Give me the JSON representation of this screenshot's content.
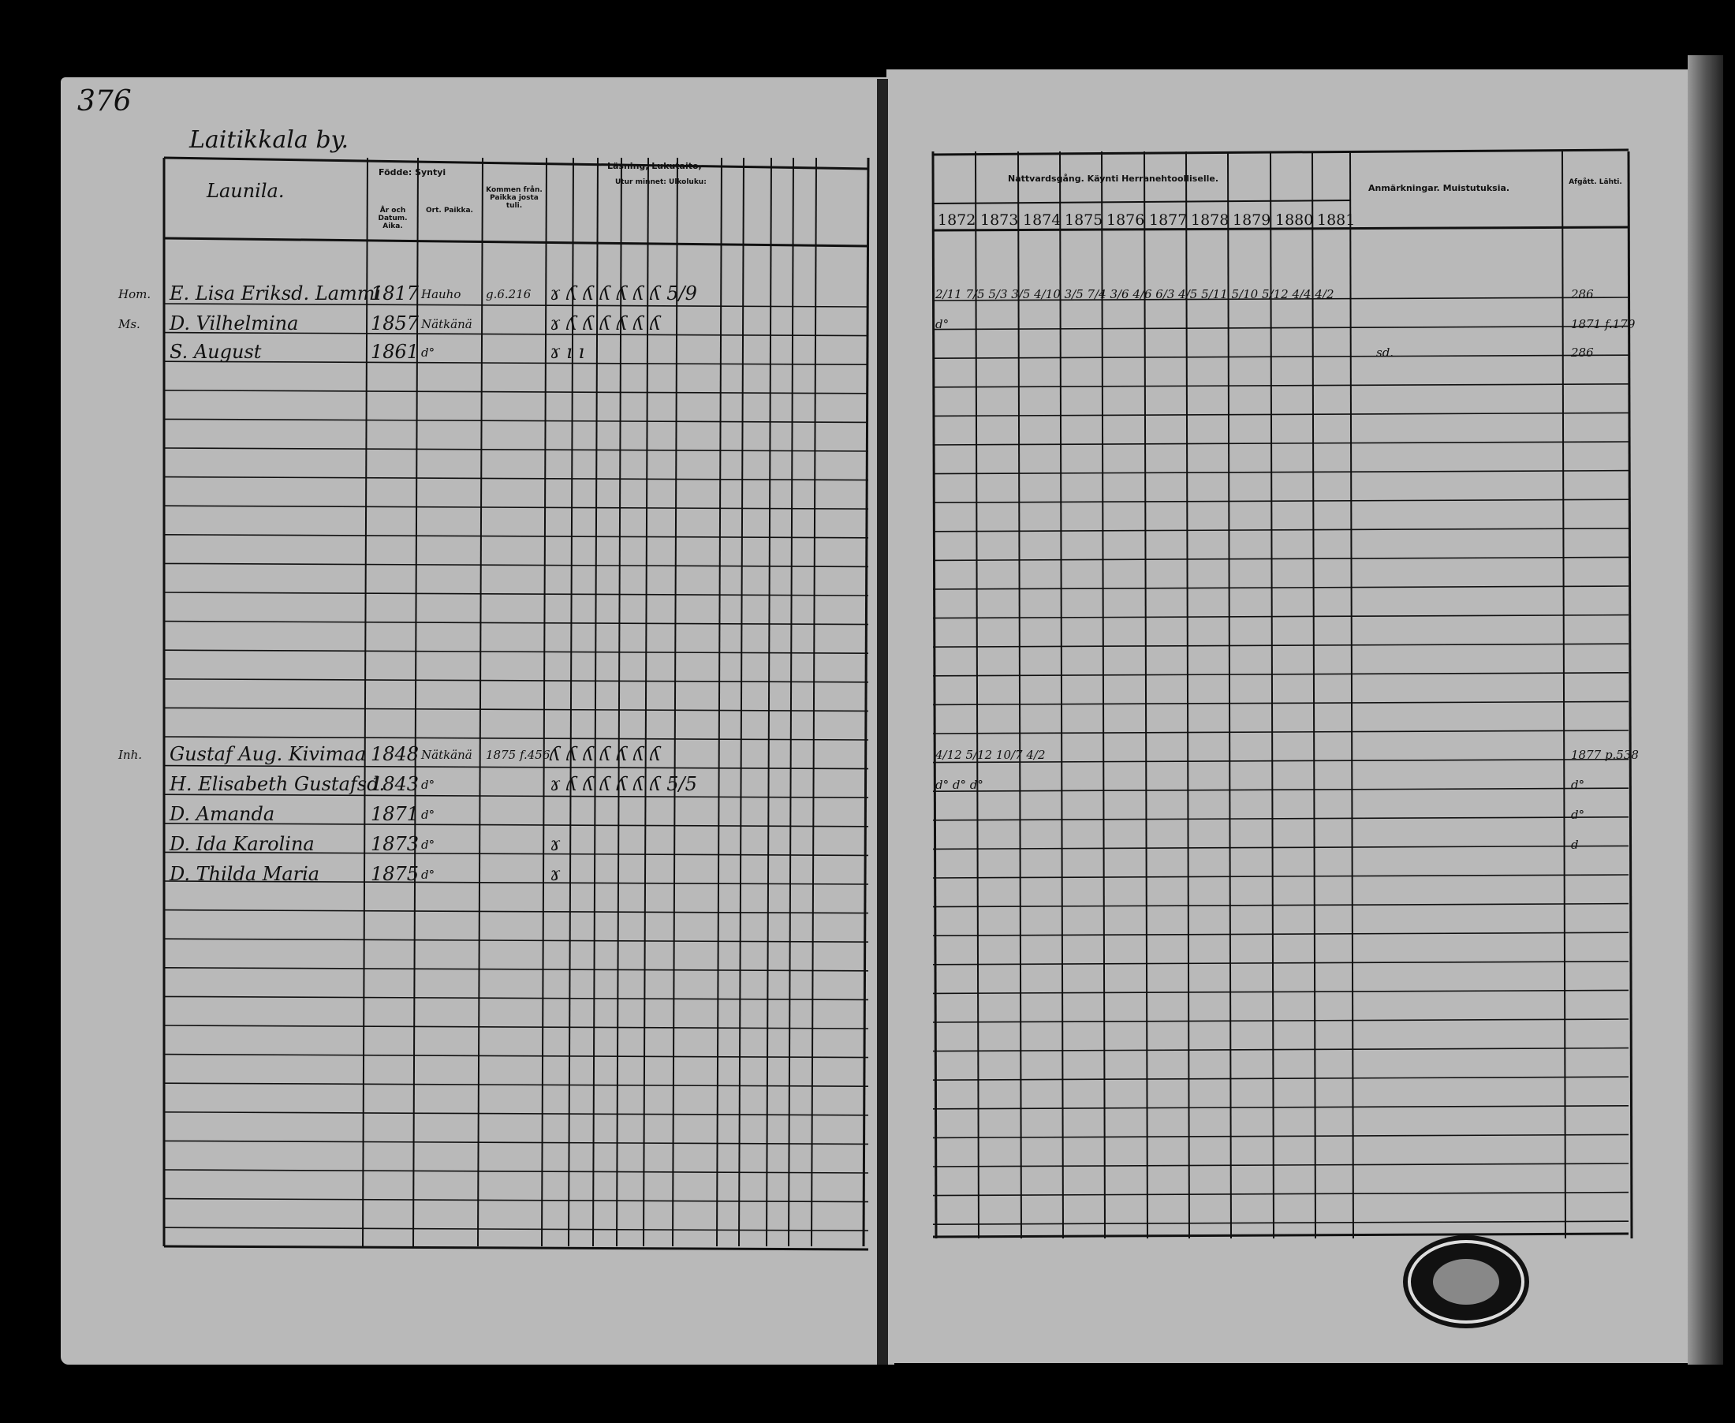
{
  "page_number": "376",
  "village": "Laitikkala by.",
  "left_headers": {
    "name": "Launila.",
    "birth": "Födde: Syntyi",
    "birth_year": "År och Datum. Aika.",
    "birth_place": "Ort. Paikka.",
    "moved_in": "Kommen från. Paikka josta tuli.",
    "reading": "Läsning, Lukutaito,",
    "reading_sub": "Utur minnet: Ulkoluku:"
  },
  "right_headers": {
    "communion": "Nattvardsgång. Käynti Herranehtoolliselle.",
    "years": [
      "1872",
      "1873",
      "1874",
      "1875",
      "1876",
      "1877",
      "1878",
      "1879",
      "1880",
      "1881"
    ],
    "remarks": "Anmärkningar. Muistutuksia.",
    "departed": "Afgått. Lähti."
  },
  "entries": [
    {
      "prefix": "Hom.",
      "name": "E. Lisa Eriksd. Lammi",
      "date": "1817",
      "place": "Hauho",
      "note": "g.6.216",
      "marks": "ɤ  ʎ  ʎ  ʎ  ʎ   ʎ            ʎ   5/9",
      "communion": "2/11  7/5 5/3  3/5 4/10  3/5 7/4  3/6   4/6 6/3  4/5 5/11   5/10   5/12 4/4 4/2",
      "remarks": "",
      "departed": "286"
    },
    {
      "prefix": "Ms.",
      "name": "D. Vilhelmina",
      "date": "1857",
      "place": "Nätkänä",
      "note": "",
      "marks": "ɤ  ʎ  ʎ  ʎ  ʎ   ʎ            ʎ",
      "communion": "d°",
      "remarks": "",
      "departed": "1871 f.179"
    },
    {
      "prefix": "",
      "name": "S. August",
      "date": "1861",
      "place": "d°",
      "note": "",
      "marks": "ɤ  ı  ı",
      "communion": "",
      "remarks": "sd.",
      "departed": "286"
    },
    {
      "prefix": "Inh.",
      "name": "Gustaf Aug. Kivimaa",
      "date": "1848",
      "place": "Nätkänä",
      "note": "1875 f.456",
      "marks": "ʎ  ʎ  ʎ  ʎ  ʎ   ʎ            ʎ",
      "communion": "4/12   5/12 10/7   4/2",
      "remarks": "",
      "departed": "1877 p.538"
    },
    {
      "prefix": "",
      "name": "H. Elisabeth Gustafsd.",
      "date": "1843",
      "place": "d°",
      "note": "",
      "marks": "ɤ  ʎ  ʎ  ʎ  ʎ   ʎ            ʎ  5/5",
      "communion": "d°   d°   d°",
      "remarks": "",
      "departed": "d°"
    },
    {
      "prefix": "",
      "name": "D. Amanda",
      "date": "1871",
      "place": "d°",
      "note": "",
      "marks": "",
      "communion": "",
      "remarks": "",
      "departed": "d°"
    },
    {
      "prefix": "",
      "name": "D. Ida Karolina",
      "date": "1873",
      "place": "d°",
      "note": "",
      "marks": "ɤ",
      "communion": "",
      "remarks": "",
      "departed": "d"
    },
    {
      "prefix": "",
      "name": "D. Thilda Maria",
      "date": "1875",
      "place": "d°",
      "note": "",
      "marks": "ɤ",
      "communion": "",
      "remarks": "",
      "departed": ""
    }
  ]
}
